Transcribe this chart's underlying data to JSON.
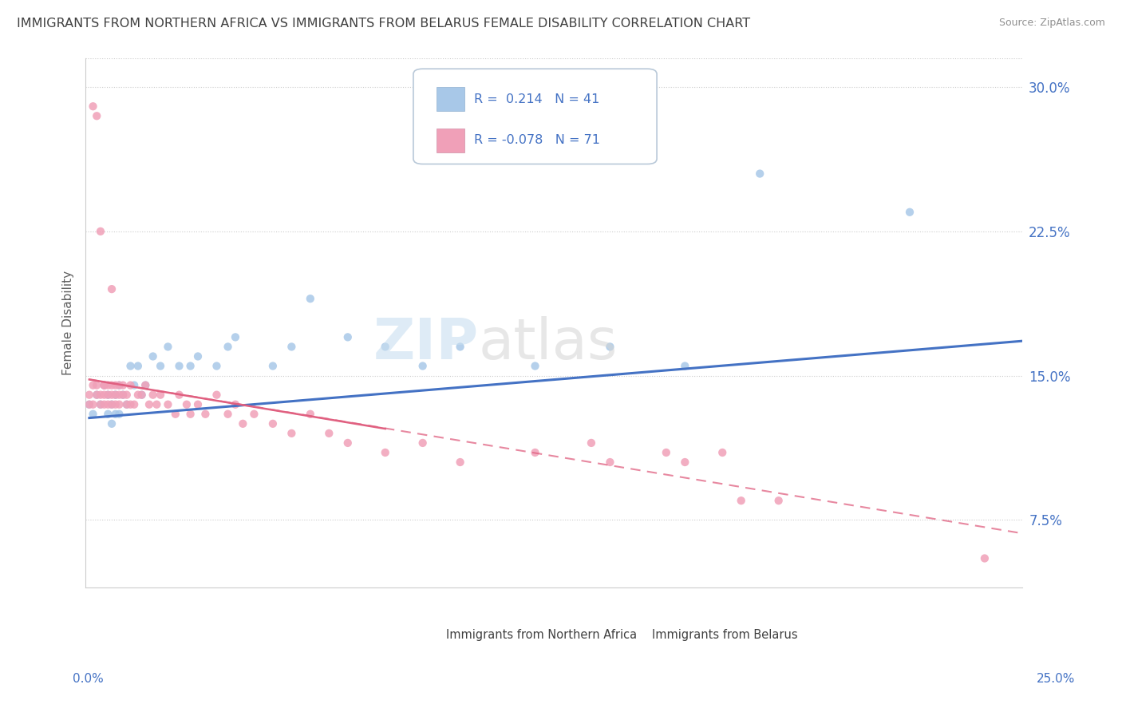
{
  "title": "IMMIGRANTS FROM NORTHERN AFRICA VS IMMIGRANTS FROM BELARUS FEMALE DISABILITY CORRELATION CHART",
  "source": "Source: ZipAtlas.com",
  "ylabel": "Female Disability",
  "y_ticks": [
    0.075,
    0.15,
    0.225,
    0.3
  ],
  "y_tick_labels": [
    "7.5%",
    "15.0%",
    "22.5%",
    "30.0%"
  ],
  "x_lim": [
    0.0,
    0.25
  ],
  "y_lim": [
    0.04,
    0.315
  ],
  "series1_label": "Immigrants from Northern Africa",
  "series2_label": "Immigrants from Belarus",
  "dot_color1": "#a8c8e8",
  "dot_color2": "#f0a0b8",
  "line_color1": "#4472c4",
  "line_color2": "#e06080",
  "background_color": "#ffffff",
  "title_color": "#404040",
  "axis_label_color": "#4472c4",
  "legend_R1": "0.214",
  "legend_N1": "41",
  "legend_R2": "-0.078",
  "legend_N2": "71",
  "series1_x": [
    0.001,
    0.002,
    0.003,
    0.004,
    0.005,
    0.006,
    0.006,
    0.007,
    0.007,
    0.008,
    0.008,
    0.009,
    0.009,
    0.01,
    0.011,
    0.012,
    0.013,
    0.014,
    0.015,
    0.016,
    0.018,
    0.02,
    0.022,
    0.025,
    0.028,
    0.03,
    0.035,
    0.038,
    0.04,
    0.05,
    0.055,
    0.06,
    0.07,
    0.08,
    0.09,
    0.1,
    0.12,
    0.14,
    0.16,
    0.18,
    0.22
  ],
  "series1_y": [
    0.135,
    0.13,
    0.14,
    0.135,
    0.145,
    0.13,
    0.14,
    0.135,
    0.125,
    0.14,
    0.13,
    0.145,
    0.13,
    0.14,
    0.135,
    0.155,
    0.145,
    0.155,
    0.14,
    0.145,
    0.16,
    0.155,
    0.165,
    0.155,
    0.155,
    0.16,
    0.155,
    0.165,
    0.17,
    0.155,
    0.165,
    0.19,
    0.17,
    0.165,
    0.155,
    0.165,
    0.155,
    0.165,
    0.155,
    0.255,
    0.235
  ],
  "series2_x": [
    0.001,
    0.001,
    0.002,
    0.002,
    0.002,
    0.003,
    0.003,
    0.003,
    0.004,
    0.004,
    0.004,
    0.005,
    0.005,
    0.005,
    0.005,
    0.006,
    0.006,
    0.006,
    0.007,
    0.007,
    0.007,
    0.007,
    0.008,
    0.008,
    0.008,
    0.009,
    0.009,
    0.009,
    0.01,
    0.01,
    0.011,
    0.011,
    0.012,
    0.012,
    0.013,
    0.014,
    0.015,
    0.016,
    0.017,
    0.018,
    0.019,
    0.02,
    0.022,
    0.024,
    0.025,
    0.027,
    0.028,
    0.03,
    0.032,
    0.035,
    0.038,
    0.04,
    0.042,
    0.045,
    0.05,
    0.055,
    0.06,
    0.065,
    0.07,
    0.08,
    0.09,
    0.1,
    0.12,
    0.135,
    0.14,
    0.155,
    0.16,
    0.17,
    0.175,
    0.185,
    0.24
  ],
  "series2_y": [
    0.14,
    0.135,
    0.145,
    0.135,
    0.29,
    0.14,
    0.145,
    0.285,
    0.135,
    0.14,
    0.225,
    0.145,
    0.135,
    0.14,
    0.145,
    0.145,
    0.135,
    0.14,
    0.145,
    0.135,
    0.195,
    0.14,
    0.145,
    0.135,
    0.14,
    0.145,
    0.14,
    0.135,
    0.14,
    0.145,
    0.135,
    0.14,
    0.145,
    0.135,
    0.135,
    0.14,
    0.14,
    0.145,
    0.135,
    0.14,
    0.135,
    0.14,
    0.135,
    0.13,
    0.14,
    0.135,
    0.13,
    0.135,
    0.13,
    0.14,
    0.13,
    0.135,
    0.125,
    0.13,
    0.125,
    0.12,
    0.13,
    0.12,
    0.115,
    0.11,
    0.115,
    0.105,
    0.11,
    0.115,
    0.105,
    0.11,
    0.105,
    0.11,
    0.085,
    0.085,
    0.055
  ],
  "trend1_x_start": 0.001,
  "trend1_x_end": 0.25,
  "trend1_y_start": 0.128,
  "trend1_y_end": 0.168,
  "trend2_x_start": 0.001,
  "trend2_x_end": 0.25,
  "trend2_y_start": 0.148,
  "trend2_y_end": 0.068
}
